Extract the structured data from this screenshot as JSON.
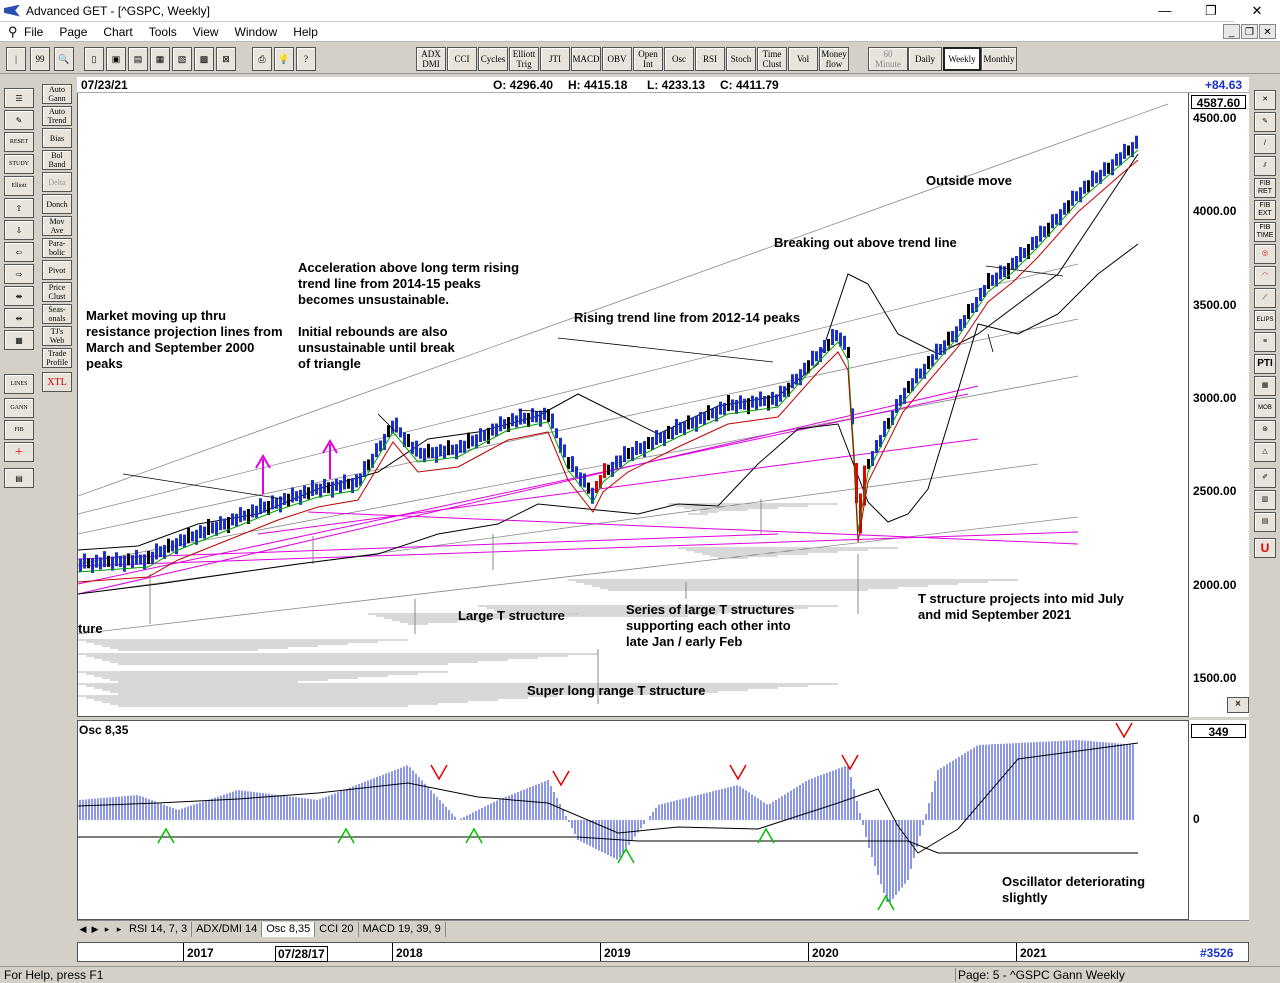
{
  "window": {
    "title": "Advanced GET - [^GSPC, Weekly]",
    "controls": [
      "—",
      "❐",
      "✕"
    ]
  },
  "menu": [
    "File",
    "Page",
    "Chart",
    "Tools",
    "View",
    "Window",
    "Help"
  ],
  "toolbar": {
    "indicators": [
      "ADX\nDMI",
      "CCI",
      "Cycles",
      "Elliott\nTrig",
      "JTI",
      "MACD",
      "OBV",
      "Open\nInt",
      "Osc",
      "RSI",
      "Stoch",
      "Time\nClust",
      "Vol",
      "Money\nflow"
    ],
    "periods": [
      "60\nMinute",
      "Daily",
      "Weekly",
      "Monthly"
    ],
    "selected_period": "Weekly"
  },
  "left_tools": [
    "Auto\nGann",
    "Auto\nTrend",
    "Bias",
    "Bol\nBand",
    "Delta",
    "Donch",
    "Mov\nAve",
    "Para-\nbolic",
    "Pivot",
    "Price\nClust",
    "Seas-\nonals",
    "TJ's\nWeb",
    "Trade\nProfile",
    "XTL"
  ],
  "left_icons": [
    "RESET",
    "STUDY",
    "Elliott",
    "LINES",
    "GANN",
    "FIB"
  ],
  "right_tools": [
    "FIB\nRET",
    "FIB\nEXT",
    "FIB\nTIME",
    "ELIPS",
    "PTI",
    "MOB"
  ],
  "info": {
    "date": "07/23/21",
    "open": "O: 4296.40",
    "high": "H: 4415.18",
    "low": "L: 4233.13",
    "close": "C: 4411.79",
    "change": "+84.63"
  },
  "price_axis": {
    "current": "4587.60",
    "ticks": [
      "4500.00",
      "4000.00",
      "3500.00",
      "3000.00",
      "2500.00",
      "2000.00",
      "1500.00"
    ]
  },
  "annotations": {
    "market_moving": "Market moving up thru\nresistance projection lines from\nMarch and September 2000\npeaks",
    "acceleration": "Acceleration above long term rising\ntrend line from 2014-15 peaks\nbecomes unsustainable.",
    "initial_rebounds": "Initial rebounds are also\nunsustainable until break\nof triangle",
    "rising_trend": "Rising trend line from 2012-14 peaks",
    "breaking_out": "Breaking out above trend line",
    "outside_move": "Outside move",
    "large_t": "Large T structure",
    "series_t": "Series of large T structures\nsupporting each other into\nlate Jan / early Feb",
    "super_t": "Super long range T structure",
    "t_projects": "T structure projects into mid July\nand mid September 2021",
    "ture": "ture",
    "oscillator": "Oscillator deteriorating\nslightly"
  },
  "osc": {
    "label": "Osc 8,35",
    "value": "349",
    "zero": "0"
  },
  "tabs": [
    "RSI 14, 7, 3",
    "ADX/DMI 14",
    "Osc 8,35",
    "CCI 20",
    "MACD 19, 39, 9"
  ],
  "active_tab": "Osc 8,35",
  "date_axis": {
    "years": [
      "2017",
      "2018",
      "2019",
      "2020",
      "2021"
    ],
    "cursor_date": "07/28/17",
    "bar_count": "#3526"
  },
  "status": {
    "help": "For Help, press F1",
    "page": "Page: 5 - ^GSPC Gann Weekly"
  },
  "colors": {
    "up_bar": "#1a2fd0",
    "down_bar": "#000000",
    "crash_bar": "#e00000",
    "magenta": "#e000e0",
    "osc_bar": "#1a2fd0",
    "up_arrow": "#00c000",
    "down_arrow": "#e00000"
  }
}
